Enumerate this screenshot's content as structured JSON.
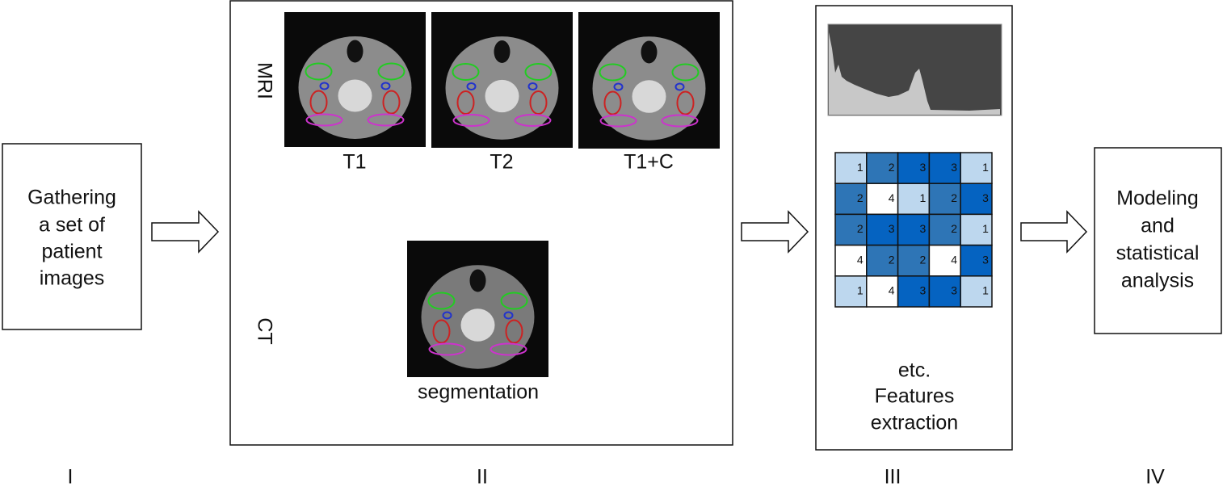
{
  "steps": [
    {
      "lines": [
        "Gathering",
        "a set of",
        "patient",
        "images"
      ],
      "numeral": "I"
    },
    {
      "numeral": "II"
    },
    {
      "numeral": "III",
      "lines": [
        "etc.",
        "Features",
        "extraction"
      ]
    },
    {
      "lines": [
        "Modeling",
        "and",
        "statistical",
        "analysis"
      ],
      "numeral": "IV"
    }
  ],
  "modalities": {
    "mri": "MRI",
    "ct": "CT"
  },
  "images": {
    "mri": [
      "T1",
      "T2",
      "T1+C"
    ],
    "ct": "segmentation"
  },
  "matrix": {
    "rows": [
      [
        1,
        2,
        3,
        3,
        1
      ],
      [
        2,
        4,
        1,
        2,
        3
      ],
      [
        2,
        3,
        3,
        2,
        1
      ],
      [
        4,
        2,
        2,
        4,
        3
      ],
      [
        1,
        4,
        3,
        3,
        1
      ]
    ],
    "colors": {
      "1": "#bdd7ee",
      "2": "#2e75b6",
      "3": "#0563c1",
      "4": "#ffffff"
    }
  }
}
